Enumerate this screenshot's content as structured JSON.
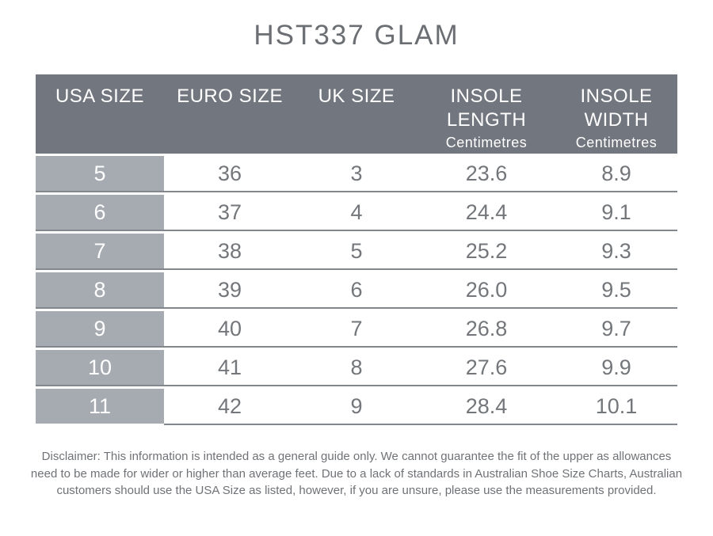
{
  "title": "HST337 GLAM",
  "colors": {
    "header_bg": "#72767e",
    "first_col_bg": "#a6abb1",
    "row_line": "#82878d",
    "body_text": "#73767a",
    "header_text": "#ffffff",
    "title_text": "#6b6e72",
    "disclaimer_text": "#6f7276",
    "page_bg": "#ffffff"
  },
  "table": {
    "headers": [
      {
        "key": "usa-size",
        "lines": [
          "USA SIZE"
        ],
        "sub": ""
      },
      {
        "key": "euro-size",
        "lines": [
          "EURO SIZE"
        ],
        "sub": ""
      },
      {
        "key": "uk-size",
        "lines": [
          "UK SIZE"
        ],
        "sub": ""
      },
      {
        "key": "insole-length",
        "lines": [
          "INSOLE",
          "LENGTH"
        ],
        "sub": "Centimetres"
      },
      {
        "key": "insole-width",
        "lines": [
          "INSOLE",
          "WIDTH"
        ],
        "sub": "Centimetres"
      }
    ],
    "rows": [
      [
        "5",
        "36",
        "3",
        "23.6",
        "8.9"
      ],
      [
        "6",
        "37",
        "4",
        "24.4",
        "9.1"
      ],
      [
        "7",
        "38",
        "5",
        "25.2",
        "9.3"
      ],
      [
        "8",
        "39",
        "6",
        "26.0",
        "9.5"
      ],
      [
        "9",
        "40",
        "7",
        "26.8",
        "9.7"
      ],
      [
        "10",
        "41",
        "8",
        "27.6",
        "9.9"
      ],
      [
        "11",
        "42",
        "9",
        "28.4",
        "10.1"
      ]
    ]
  },
  "disclaimer": "Disclaimer: This information is intended as a general guide only. We cannot guarantee the fit of the upper as allowances need to be made for wider or higher than average feet. Due to a lack of standards in Australian Shoe Size Charts, Australian customers should use the USA Size as listed, however, if you are unsure, please use the measurements provided.",
  "chart_data": {
    "type": "table",
    "title": "HST337 GLAM",
    "columns": [
      "USA SIZE",
      "EURO SIZE",
      "UK SIZE",
      "INSOLE LENGTH (Centimetres)",
      "INSOLE WIDTH (Centimetres)"
    ],
    "rows": [
      [
        5,
        36,
        3,
        23.6,
        8.9
      ],
      [
        6,
        37,
        4,
        24.4,
        9.1
      ],
      [
        7,
        38,
        5,
        25.2,
        9.3
      ],
      [
        8,
        39,
        6,
        26.0,
        9.5
      ],
      [
        9,
        40,
        7,
        26.8,
        9.7
      ],
      [
        10,
        41,
        8,
        27.6,
        9.9
      ],
      [
        11,
        42,
        9,
        28.4,
        10.1
      ]
    ],
    "notes": "USA sizes column highlighted; insole measurements in centimetres"
  }
}
